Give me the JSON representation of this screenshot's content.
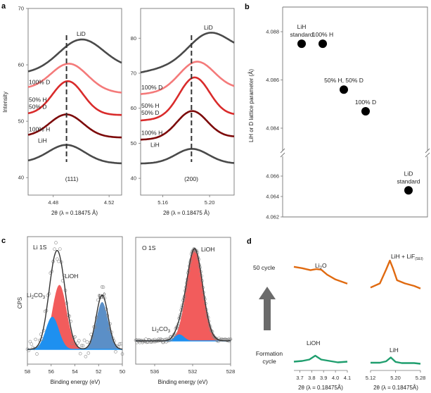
{
  "colors": {
    "lid": "#4a4a4a",
    "d100": "#f47a7a",
    "h50d50": "#d92b2b",
    "h100": "#7d0a0a",
    "lih": "#4a4a4a",
    "lioh_fill": "#f25c5c",
    "li2co3_fill": "#1e90f0",
    "li0_fill": "#5b8fc7",
    "envelope": "#333333",
    "cycle50": "#e06a10",
    "formation": "#1f9e6e",
    "arrow": "#6b6b6b"
  },
  "chart_data": [
    {
      "id": "a1",
      "panel_label": "a",
      "type": "line",
      "title": "",
      "annotation": "(111)",
      "xlabel": "2θ (λ = 0.18475 Å)",
      "ylabel": "Intensity",
      "xlim": [
        4.462,
        4.529
      ],
      "ylim": [
        36.9,
        70
      ],
      "xticks": [
        4.48,
        4.52
      ],
      "xtick_labels": [
        "4.48",
        "4.52"
      ],
      "yticks": [
        40,
        50,
        60,
        70
      ],
      "ytick_labels": [
        "40",
        "50",
        "60",
        "70"
      ],
      "reference_line_x": 4.4895,
      "series": [
        {
          "name": "LiD",
          "color_key": "lid",
          "label": "LiD",
          "baseline": 58.5,
          "end": 59.3,
          "peak_x": 4.5,
          "peak_y": 64.5,
          "width": 0.016
        },
        {
          "name": "100% D",
          "color_key": "d100",
          "label": "100% D",
          "baseline": 55.7,
          "end": 55.0,
          "peak_x": 4.4915,
          "peak_y": 60.2,
          "width": 0.013
        },
        {
          "name": "50% H 50% D",
          "color_key": "h50d50",
          "label_lines": [
            "50% H",
            "50% D"
          ],
          "baseline": 51.2,
          "end": 51.1,
          "peak_x": 4.4905,
          "peak_y": 57.1,
          "width": 0.011
        },
        {
          "name": "100% H",
          "color_key": "h100",
          "label": "100% H",
          "baseline": 47.3,
          "end": 47.1,
          "peak_x": 4.4895,
          "peak_y": 51.2,
          "width": 0.012
        },
        {
          "name": "LiH",
          "color_key": "lih",
          "label": "LiH",
          "baseline": 42.7,
          "end": 42.5,
          "peak_x": 4.4895,
          "peak_y": 45.8,
          "width": 0.013
        }
      ]
    },
    {
      "id": "a2",
      "panel_label": "",
      "type": "line",
      "annotation": "(200)",
      "xlabel": "2θ (λ = 0.18475 Å)",
      "ylabel": "",
      "xlim": [
        5.141,
        5.221
      ],
      "ylim": [
        35.2,
        88.5
      ],
      "xticks": [
        5.16,
        5.2
      ],
      "xtick_labels": [
        "5.16",
        "5.20"
      ],
      "yticks": [
        40,
        50,
        60,
        70,
        80
      ],
      "ytick_labels": [
        "40",
        "50",
        "60",
        "70",
        "80"
      ],
      "reference_line_x": 5.1845,
      "series": [
        {
          "name": "LiD",
          "color_key": "lid",
          "label": "LiD",
          "baseline": 70.2,
          "end": 75.5,
          "peak_x": 5.199,
          "peak_y": 81.5,
          "width": 0.017
        },
        {
          "name": "100% D",
          "color_key": "d100",
          "label": "100% D",
          "baseline": 64.0,
          "end": 65.5,
          "peak_x": 5.189,
          "peak_y": 73.3,
          "width": 0.015
        },
        {
          "name": "50% H 50% D",
          "color_key": "h50d50",
          "label_lines": [
            "50% H",
            "50% D"
          ],
          "baseline": 56.5,
          "end": 58.0,
          "peak_x": 5.187,
          "peak_y": 68.8,
          "width": 0.013
        },
        {
          "name": "100% H",
          "color_key": "h100",
          "label": "100% H",
          "baseline": 51.0,
          "end": 51.8,
          "peak_x": 5.185,
          "peak_y": 59.2,
          "width": 0.013
        },
        {
          "name": "LiH",
          "color_key": "lih",
          "label": "LiH",
          "baseline": 44.2,
          "end": 44.2,
          "peak_x": 5.185,
          "peak_y": 48.4,
          "width": 0.014
        }
      ]
    },
    {
      "id": "b",
      "panel_label": "b",
      "type": "scatter",
      "xlabel": "",
      "ylabel": "LiH or D lattice parameter (Å)",
      "axis_break": true,
      "upper_ylim": [
        4.083,
        4.089
      ],
      "lower_ylim": [
        4.062,
        4.0674
      ],
      "yticks": [
        4.062,
        4.064,
        4.066,
        4.084,
        4.086,
        4.088
      ],
      "ytick_labels": [
        "4.062",
        "4.064",
        "4.066",
        "4.084",
        "4.086",
        "4.088"
      ],
      "points": [
        {
          "label_lines": [
            "LiH",
            "standard"
          ],
          "x": 1,
          "y": 4.0875
        },
        {
          "label_lines": [
            "100% H"
          ],
          "x": 2,
          "y": 4.0875
        },
        {
          "label_lines": [
            "50% H, 50% D"
          ],
          "x": 3,
          "y": 4.0856
        },
        {
          "label_lines": [
            "100% D"
          ],
          "x": 4,
          "y": 4.0847
        },
        {
          "label_lines": [
            "LiD",
            "standard"
          ],
          "x": 6,
          "y": 4.0646
        }
      ]
    },
    {
      "id": "c1",
      "panel_label": "c",
      "type": "area",
      "title": "Li 1S",
      "xlabel": "Binding energy (eV)",
      "ylabel": "CPS",
      "xlim": [
        58,
        50
      ],
      "xticks": [
        58,
        56,
        54,
        52,
        50
      ],
      "xtick_labels": [
        "58",
        "56",
        "54",
        "52",
        "50"
      ],
      "components": [
        {
          "name": "Li2CO3",
          "label_main": "Li",
          "label_sub": "2",
          "label_rest": "CO",
          "label_sub2": "3",
          "center_eV": 55.9,
          "amplitude": 0.38,
          "sigma": 0.55,
          "color_key": "li2co3_fill"
        },
        {
          "name": "LiOH",
          "label_main": "LiOH",
          "center_eV": 55.3,
          "amplitude": 0.75,
          "sigma": 0.6,
          "color_key": "lioh_fill"
        },
        {
          "name": "Li0",
          "label_main": "Li",
          "label_sup": "0",
          "center_eV": 51.7,
          "amplitude": 0.55,
          "sigma": 0.5,
          "color_key": "li0_fill"
        }
      ]
    },
    {
      "id": "c2",
      "panel_label": "",
      "type": "area",
      "title": "O 1S",
      "xlabel": "Binding energy (eV)",
      "ylabel": "",
      "xlim": [
        538,
        528
      ],
      "xticks": [
        536,
        532,
        528
      ],
      "xtick_labels": [
        "536",
        "532",
        "528"
      ],
      "components": [
        {
          "name": "Li2CO3",
          "label_main": "Li",
          "label_sub": "2",
          "label_rest": "CO",
          "label_sub2": "3",
          "center_eV": 533.4,
          "amplitude": 0.07,
          "sigma": 0.5,
          "color_key": "li2co3_fill"
        },
        {
          "name": "LiOH",
          "label_main": "LiOH",
          "center_eV": 531.8,
          "amplitude": 1.0,
          "sigma": 0.85,
          "color_key": "lioh_fill"
        }
      ]
    },
    {
      "id": "d",
      "panel_label": "d",
      "type": "line",
      "rows": [
        {
          "name": "50 cycle",
          "label": "50 cycle",
          "color_key": "cycle50"
        },
        {
          "name": "Formation cycle",
          "label_lines": [
            "Formation",
            "cycle"
          ],
          "color_key": "formation"
        }
      ],
      "arrow_label": "",
      "left_axis": {
        "xlabel": "2θ (λ = 0.18475Å)",
        "xlim": [
          3.65,
          4.1
        ],
        "xticks": [
          3.7,
          3.8,
          3.9,
          4.0,
          4.1
        ],
        "xtick_labels": [
          "3.7",
          "3.8",
          "3.9",
          "4.0",
          "4.1"
        ],
        "top_label": "Li2O",
        "bottom_label": "LiOH",
        "top_series": {
          "x": [
            3.65,
            3.72,
            3.79,
            3.84,
            3.88,
            3.93,
            4.0,
            4.1
          ],
          "y": [
            0.78,
            0.73,
            0.66,
            0.7,
            0.68,
            0.5,
            0.33,
            0.18
          ]
        },
        "bottom_series": {
          "x": [
            3.65,
            3.72,
            3.78,
            3.83,
            3.88,
            3.95,
            4.02,
            4.1
          ],
          "y": [
            0.18,
            0.22,
            0.3,
            0.52,
            0.3,
            0.22,
            0.14,
            0.18
          ]
        }
      },
      "right_axis": {
        "xlabel": "2θ (λ = 0.18475Å)",
        "xlim": [
          5.12,
          5.28
        ],
        "xticks": [
          5.12,
          5.2,
          5.28
        ],
        "xtick_labels": [
          "5.12",
          "5.20",
          "5.28"
        ],
        "top_label_main": "LiH + LiF",
        "top_label_sub": "(SEI)",
        "bottom_label": "LiH",
        "top_series": {
          "x": [
            5.12,
            5.15,
            5.17,
            5.182,
            5.192,
            5.205,
            5.23,
            5.26,
            5.28
          ],
          "y": [
            0.15,
            0.28,
            0.72,
            1.0,
            0.75,
            0.38,
            0.28,
            0.2,
            0.12
          ]
        },
        "bottom_series": {
          "x": [
            5.12,
            5.15,
            5.17,
            5.185,
            5.2,
            5.22,
            5.26,
            5.28
          ],
          "y": [
            0.2,
            0.2,
            0.28,
            0.5,
            0.25,
            0.18,
            0.18,
            0.14
          ]
        }
      }
    }
  ]
}
